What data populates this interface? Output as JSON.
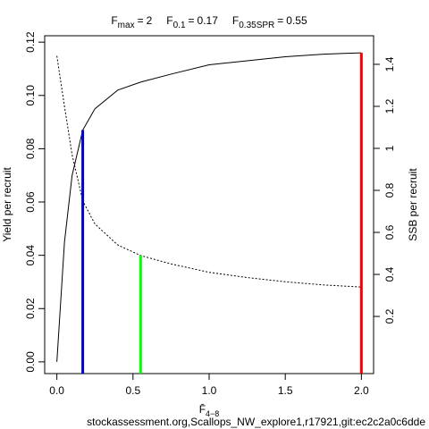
{
  "chart_data": {
    "type": "line",
    "annotations": [
      {
        "symbol": "F",
        "subscript": "max",
        "relation": "=",
        "value": 2,
        "height": 0.116,
        "axis": "y",
        "color": "#ff0000"
      },
      {
        "symbol": "F",
        "subscript": "0.1",
        "relation": "=",
        "value": 0.17,
        "height": 0.087,
        "axis": "y",
        "color": "#0000cc"
      },
      {
        "symbol": "F",
        "subscript": "0.35SPR",
        "relation": "=",
        "value": 0.55,
        "height": 0.49,
        "axis": "y2",
        "color": "#00ff00"
      }
    ],
    "x_label": {
      "text": "F̄",
      "subscript": "4−8"
    },
    "y_label": "Yield per recruit",
    "y2_label": "SSB per recruit",
    "footer": "stockassessment.org,Scallops_NW_explore1,r17921,git:ec2c2a0c6dde",
    "x": [
      0,
      0.05,
      0.1,
      0.17,
      0.25,
      0.4,
      0.55,
      0.75,
      1.0,
      1.25,
      1.5,
      1.75,
      2.0
    ],
    "series": [
      {
        "color": "#000000",
        "line_style": "solid",
        "axis": "y",
        "values": [
          0,
          0.045,
          0.07,
          0.087,
          0.095,
          0.102,
          0.105,
          0.108,
          0.1115,
          0.113,
          0.1145,
          0.1155,
          0.116
        ]
      },
      {
        "color": "#000000",
        "line_style": "dotted",
        "axis": "y2",
        "values": [
          1.44,
          1.2,
          0.97,
          0.75,
          0.64,
          0.54,
          0.49,
          0.45,
          0.41,
          0.385,
          0.365,
          0.35,
          0.34
        ]
      }
    ],
    "xlim": [
      -0.08,
      2.08
    ],
    "xticks": [
      {
        "value": 0,
        "label": "0.0"
      },
      0.5,
      {
        "value": 1,
        "label": "1.0"
      },
      1.5,
      {
        "value": 2,
        "label": "2.0"
      }
    ],
    "ylim": [
      -0.0044,
      0.1224
    ],
    "yticks": [
      {
        "value": 0,
        "label": "0.00"
      },
      0.02,
      0.04,
      0.06,
      0.08,
      {
        "value": 0.1,
        "label": "0.10"
      },
      0.12
    ],
    "y2lim": [
      -0.072,
      1.536
    ],
    "y2ticks": [
      0.2,
      0.4,
      0.6,
      0.8,
      1,
      1.2,
      1.4
    ]
  }
}
